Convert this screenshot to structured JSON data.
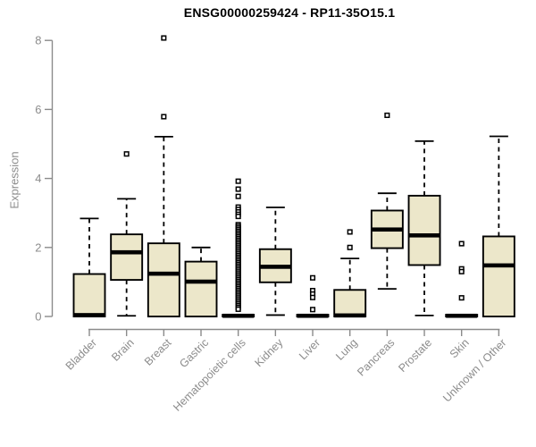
{
  "title": "ENSG00000259424 - RP11-35O15.1",
  "colors": {
    "background": "#FFFFFF",
    "box_fill": "#ECE7CA",
    "box_stroke": "#000000",
    "median": "#000000",
    "whisker": "#000000",
    "outlier_stroke": "#000000",
    "outlier_fill": "#FFFFFF",
    "axis": "#8B8B8B",
    "tick_label": "#8C8C8C",
    "title_color": "#000000"
  },
  "chart_data": {
    "type": "boxplot",
    "title": "ENSG00000259424 - RP11-35O15.1",
    "xlabel": "",
    "ylabel": "Expression",
    "ylim": [
      0,
      8
    ],
    "yticks": [
      "0",
      "2",
      "4",
      "6",
      "8"
    ],
    "grid": false,
    "legend": false,
    "categories": [
      "Bladder",
      "Brain",
      "Breast",
      "Gastric",
      "Hematopoietic cells",
      "Kidney",
      "Liver",
      "Lung",
      "Pancreas",
      "Prostate",
      "Skin",
      "Unknown / Other"
    ],
    "series": [
      {
        "name": "Bladder",
        "whisker_low": null,
        "q1": 0,
        "median": 0.04,
        "q3": 1.23,
        "whisker_high": 2.84,
        "outliers": []
      },
      {
        "name": "Brain",
        "whisker_low": 0.02,
        "q1": 1.06,
        "median": 1.86,
        "q3": 2.38,
        "whisker_high": 3.41,
        "outliers": [
          4.71
        ]
      },
      {
        "name": "Breast",
        "whisker_low": null,
        "q1": 0,
        "median": 1.24,
        "q3": 2.12,
        "whisker_high": 5.21,
        "outliers": [
          5.79,
          8.07
        ]
      },
      {
        "name": "Gastric",
        "whisker_low": null,
        "q1": 0,
        "median": 1.01,
        "q3": 1.59,
        "whisker_high": 2.0,
        "outliers": []
      },
      {
        "name": "Hematopoietic cells",
        "whisker_low": null,
        "q1": 0,
        "median": 0.02,
        "q3": 0.05,
        "whisker_high": null,
        "outliers": [
          3.92,
          3.69,
          3.48,
          3.17,
          3.1,
          3.03,
          2.96,
          2.9,
          2.66,
          2.61,
          2.56,
          2.51,
          2.46,
          2.41,
          2.36,
          2.31,
          2.26,
          2.21,
          2.16,
          2.11,
          2.06,
          2.01,
          1.96,
          1.91,
          1.86,
          1.81,
          1.76,
          1.71,
          1.66,
          1.61,
          1.56,
          1.51,
          1.46,
          1.41,
          1.36,
          1.31,
          1.26,
          1.21,
          1.16,
          1.11,
          1.06,
          1.01,
          0.96,
          0.91,
          0.86,
          0.81,
          0.76,
          0.71,
          0.66,
          0.61,
          0.56,
          0.51,
          0.46,
          0.41,
          0.36,
          0.31,
          0.26,
          0.21
        ]
      },
      {
        "name": "Kidney",
        "whisker_low": 0.04,
        "q1": 0.99,
        "median": 1.44,
        "q3": 1.95,
        "whisker_high": 3.16,
        "outliers": []
      },
      {
        "name": "Liver",
        "whisker_low": null,
        "q1": 0,
        "median": 0.02,
        "q3": 0.05,
        "whisker_high": null,
        "outliers": [
          1.12,
          0.75,
          0.65,
          0.55,
          0.2
        ]
      },
      {
        "name": "Lung",
        "whisker_low": null,
        "q1": 0,
        "median": 0.03,
        "q3": 0.77,
        "whisker_high": 1.68,
        "outliers": [
          2.45,
          2.0
        ]
      },
      {
        "name": "Pancreas",
        "whisker_low": 0.8,
        "q1": 1.98,
        "median": 2.52,
        "q3": 3.07,
        "whisker_high": 3.57,
        "outliers": [
          5.83
        ]
      },
      {
        "name": "Prostate",
        "whisker_low": 0.03,
        "q1": 1.49,
        "median": 2.35,
        "q3": 3.5,
        "whisker_high": 5.08,
        "outliers": []
      },
      {
        "name": "Skin",
        "whisker_low": null,
        "q1": 0,
        "median": 0.02,
        "q3": 0.05,
        "whisker_high": null,
        "outliers": [
          2.11,
          1.38,
          1.3,
          0.54
        ]
      },
      {
        "name": "Unknown / Other",
        "whisker_low": null,
        "q1": 0,
        "median": 1.48,
        "q3": 2.32,
        "whisker_high": 5.22,
        "outliers": []
      }
    ]
  }
}
